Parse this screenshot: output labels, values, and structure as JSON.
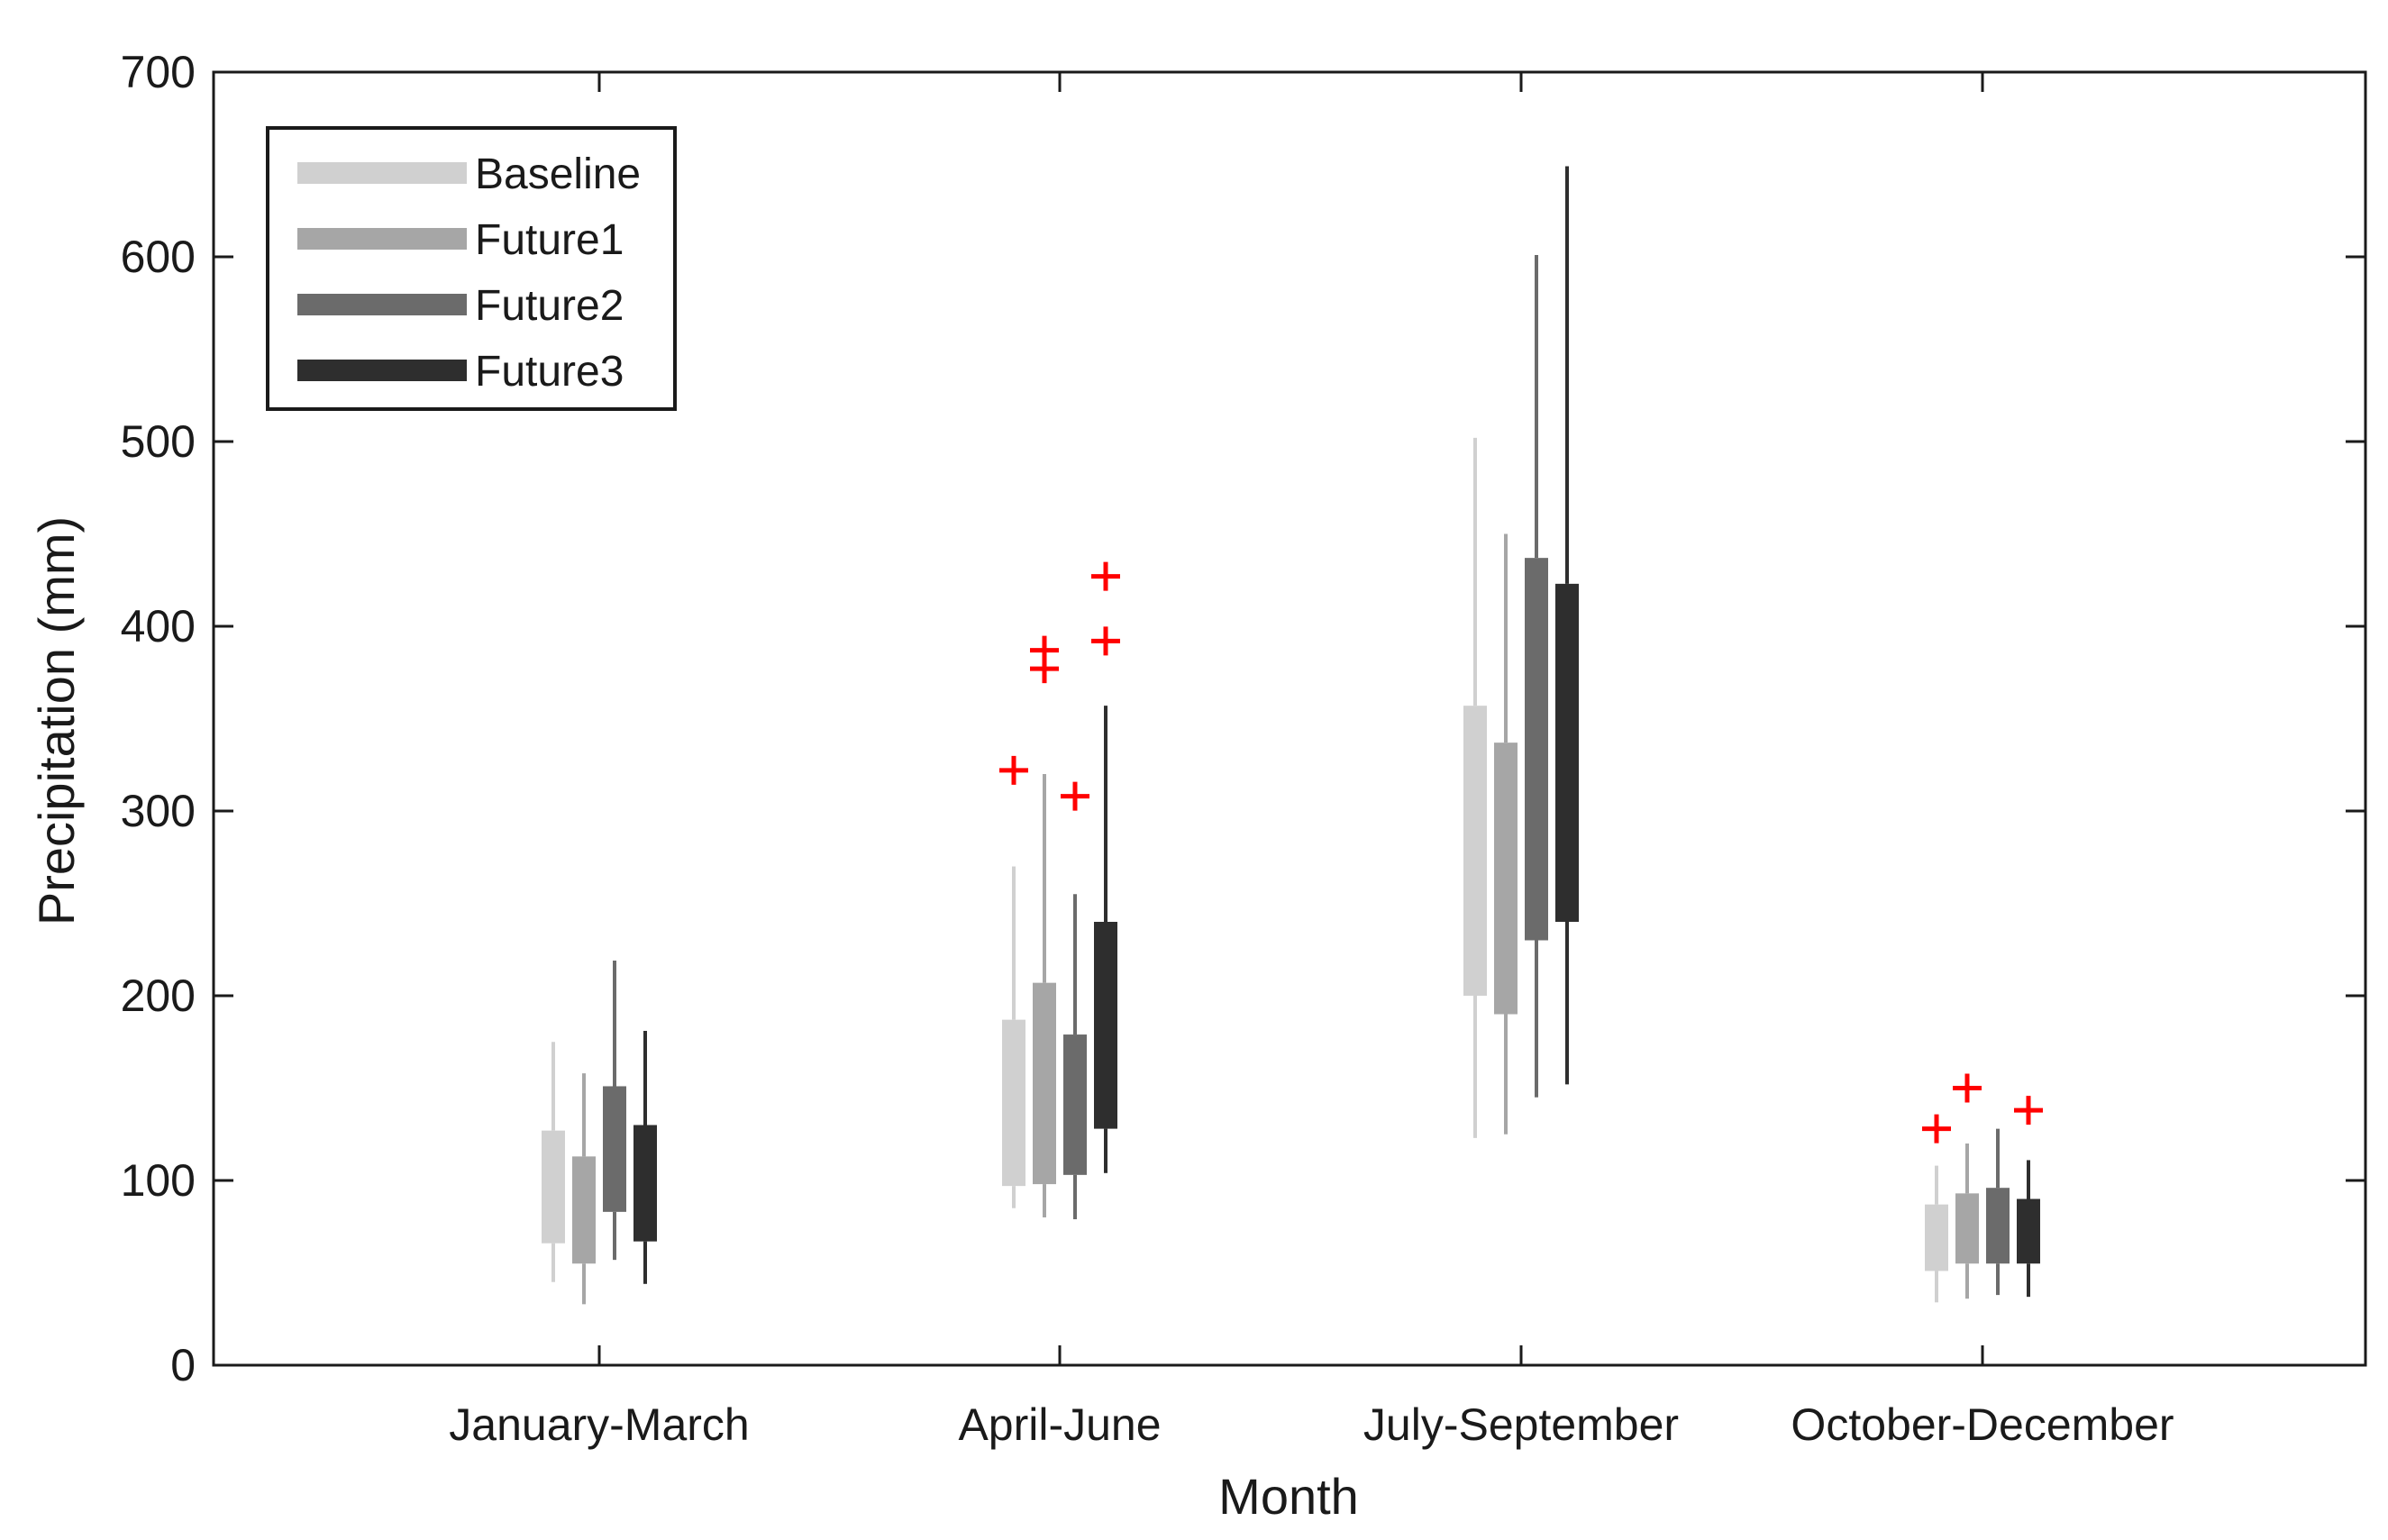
{
  "chart_data": {
    "type": "boxplot",
    "title": "",
    "xlabel": "Month",
    "ylabel": "Precipitation (mm)",
    "ylim": [
      0,
      700
    ],
    "yticks": [
      0,
      100,
      200,
      300,
      400,
      500,
      600,
      700
    ],
    "categories": [
      "January-March",
      "April-June",
      "July-September",
      "October-December"
    ],
    "legend_position": "top-left",
    "outlier_color": "#ff0000",
    "series": [
      {
        "name": "Baseline",
        "color": "#d0d0d0",
        "boxes": [
          {
            "whisker_low": 45,
            "q1": 66,
            "q3": 127,
            "whisker_high": 175,
            "outliers": []
          },
          {
            "whisker_low": 85,
            "q1": 97,
            "q3": 187,
            "whisker_high": 270,
            "outliers": [
              322
            ]
          },
          {
            "whisker_low": 123,
            "q1": 200,
            "q3": 357,
            "whisker_high": 502,
            "outliers": []
          },
          {
            "whisker_low": 34,
            "q1": 51,
            "q3": 87,
            "whisker_high": 108,
            "outliers": [
              128
            ]
          }
        ]
      },
      {
        "name": "Future1",
        "color": "#a6a6a6",
        "boxes": [
          {
            "whisker_low": 33,
            "q1": 55,
            "q3": 113,
            "whisker_high": 158,
            "outliers": []
          },
          {
            "whisker_low": 80,
            "q1": 98,
            "q3": 207,
            "whisker_high": 320,
            "outliers": [
              377,
              387
            ]
          },
          {
            "whisker_low": 125,
            "q1": 190,
            "q3": 337,
            "whisker_high": 450,
            "outliers": []
          },
          {
            "whisker_low": 36,
            "q1": 55,
            "q3": 93,
            "whisker_high": 120,
            "outliers": [
              150
            ]
          }
        ]
      },
      {
        "name": "Future2",
        "color": "#6b6b6b",
        "boxes": [
          {
            "whisker_low": 57,
            "q1": 83,
            "q3": 151,
            "whisker_high": 219,
            "outliers": []
          },
          {
            "whisker_low": 79,
            "q1": 103,
            "q3": 179,
            "whisker_high": 255,
            "outliers": [
              308
            ]
          },
          {
            "whisker_low": 145,
            "q1": 230,
            "q3": 437,
            "whisker_high": 601,
            "outliers": []
          },
          {
            "whisker_low": 38,
            "q1": 55,
            "q3": 96,
            "whisker_high": 128,
            "outliers": []
          }
        ]
      },
      {
        "name": "Future3",
        "color": "#2e2e2e",
        "boxes": [
          {
            "whisker_low": 44,
            "q1": 67,
            "q3": 130,
            "whisker_high": 181,
            "outliers": []
          },
          {
            "whisker_low": 104,
            "q1": 128,
            "q3": 240,
            "whisker_high": 357,
            "outliers": [
              392,
              427
            ]
          },
          {
            "whisker_low": 152,
            "q1": 240,
            "q3": 423,
            "whisker_high": 649,
            "outliers": []
          },
          {
            "whisker_low": 37,
            "q1": 55,
            "q3": 90,
            "whisker_high": 111,
            "outliers": [
              138
            ]
          }
        ]
      }
    ]
  }
}
